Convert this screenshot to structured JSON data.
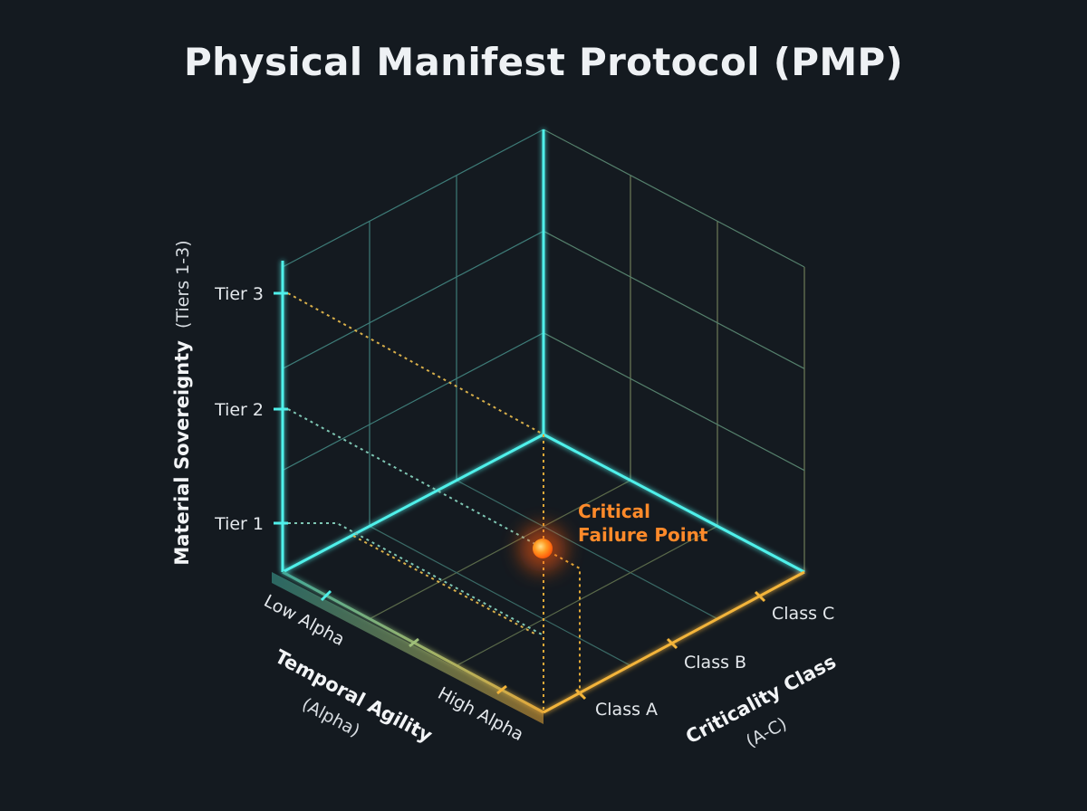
{
  "title": "Physical Manifest Protocol (PMP)",
  "axes": {
    "vertical": {
      "title": "Material Sovereignty",
      "subtitle": "(Tiers 1-3)",
      "ticks": [
        "Tier 1",
        "Tier 2",
        "Tier 3"
      ]
    },
    "left": {
      "title": "Temporal Agility",
      "subtitle": "(Alpha)",
      "ticks": [
        "Low Alpha",
        "High Alpha"
      ]
    },
    "right": {
      "title": "Criticality Class",
      "subtitle": "(A-C)",
      "ticks": [
        "Class A",
        "Class B",
        "Class C"
      ]
    }
  },
  "point": {
    "label_line1": "Critical",
    "label_line2": "Failure Point"
  },
  "colors": {
    "background": "#141a20",
    "cyan": "#4ff0ea",
    "amber": "#f3b43a",
    "point": "#ff7a1a",
    "grid": "#3f7f7c"
  }
}
